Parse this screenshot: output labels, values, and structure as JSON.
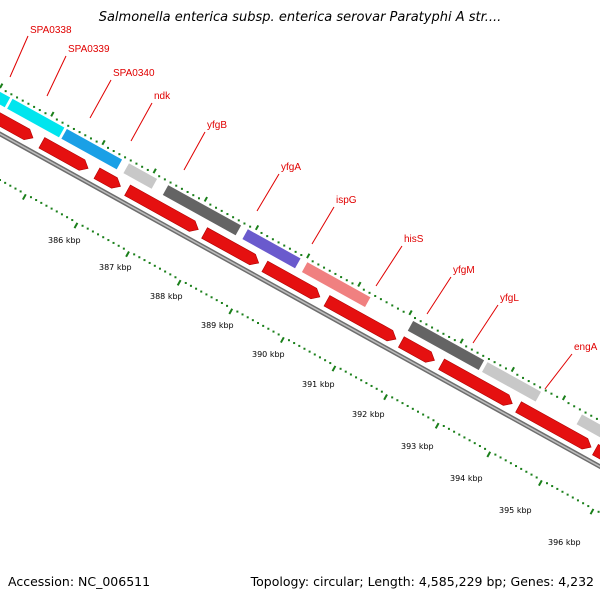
{
  "header": {
    "title": "Salmonella enterica subsp. enterica serovar Paratyphi A str...."
  },
  "footer": {
    "accession": "Accession: NC_006511",
    "info": "Topology: circular; Length: 4,585,229 bp; Genes: 4,232"
  },
  "colors": {
    "cds_strand": "#e51010",
    "tick": "#1a7f1a",
    "backbone": "#8f8f8f",
    "label": "#e00000"
  },
  "map": {
    "kbp_labels": [
      "386 kbp",
      "387 kbp",
      "388 kbp",
      "389 kbp",
      "390 kbp",
      "391 kbp",
      "392 kbp",
      "393 kbp",
      "394 kbp",
      "395 kbp",
      "396 kbp"
    ],
    "genes": [
      {
        "name": "SPA0338",
        "color": "#00e5ee"
      },
      {
        "name": "SPA0339",
        "color": "#00e5ee"
      },
      {
        "name": "SPA0340",
        "color": "#1aa0e6"
      },
      {
        "name": "ndk",
        "color": "#c8c8c8"
      },
      {
        "name": "yfgB",
        "color": "#646464"
      },
      {
        "name": "yfgA",
        "color": "#6a5acd"
      },
      {
        "name": "ispG",
        "color": "#f08080"
      },
      {
        "name": "hisS",
        "color": "#646464"
      },
      {
        "name": "yfgM",
        "color": "#c8c8c8"
      },
      {
        "name": "yfgL",
        "color": "#c8c8c8"
      },
      {
        "name": "engA",
        "color": "#c8c8c8"
      }
    ]
  }
}
